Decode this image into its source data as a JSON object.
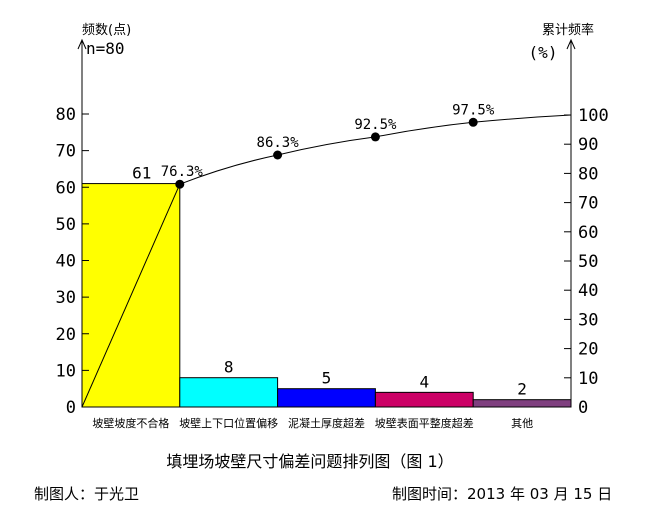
{
  "chart_data": {
    "type": "bar",
    "categories": [
      "坡壁坡度不合格",
      "坡壁上下口位置偏移",
      "泥凝土厚度超差",
      "坡壁表面平整度超差",
      "其他"
    ],
    "values": [
      61,
      8,
      5,
      4,
      2
    ],
    "colors": [
      "#ffff00",
      "#00ffff",
      "#0000ff",
      "#cc0066",
      "#7f3f7f"
    ],
    "cumulative_percent": [
      76.3,
      86.3,
      92.5,
      97.5,
      100
    ],
    "cumulative_labels": [
      "76.3%",
      "86.3%",
      "92.5%",
      "97.5%",
      ""
    ],
    "left_axis": {
      "label": "频数(点)",
      "sample_size": "n=80",
      "ylim": [
        0,
        80
      ],
      "ticks": [
        0,
        10,
        20,
        30,
        40,
        50,
        60,
        70,
        80
      ]
    },
    "right_axis": {
      "label": "累计频率",
      "unit": "(%)",
      "ylim": [
        0,
        100
      ],
      "ticks": [
        0,
        10,
        20,
        30,
        40,
        50,
        60,
        70,
        80,
        90,
        100
      ]
    },
    "title": "填埋场坡壁尺寸偏差问题排列图（图 1）",
    "grid": false,
    "legend": "none"
  },
  "footer": {
    "maker": "制图人：于光卫",
    "date": "制图时间：2013 年 03 月 15 日"
  }
}
